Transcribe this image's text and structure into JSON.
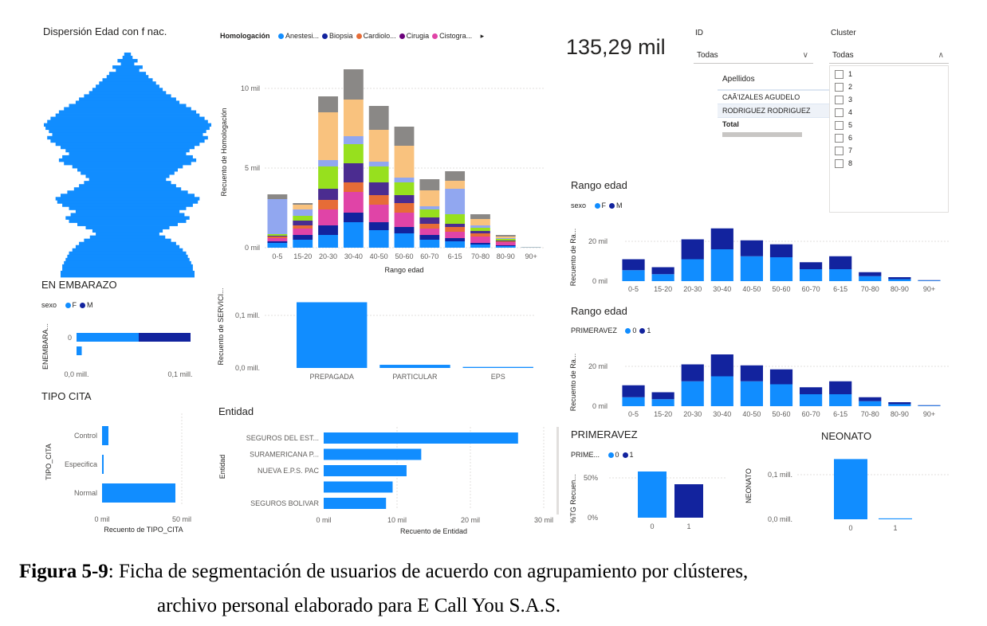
{
  "colors": {
    "blue": "#118DFF",
    "dark_blue": "#12239E",
    "orange": "#E66C37",
    "purple": "#6B007B",
    "pink": "#E044A7",
    "lime": "#97E01E",
    "peach": "#F9C27E",
    "lavender": "#91A7F0",
    "tan": "#D9C7B2",
    "teal": "#17B5C4",
    "crimson": "#C4163E",
    "indigo": "#4B2C90",
    "gray": "#8A8886"
  },
  "pyramid": {
    "title": "Dispersión Edad con f nac."
  },
  "homologacion": {
    "legend_title": "Homologación",
    "legend_items": [
      {
        "label": "Anestesi...",
        "color": "#118DFF"
      },
      {
        "label": "Biopsia",
        "color": "#12239E"
      },
      {
        "label": "Cardiolo...",
        "color": "#E66C37"
      },
      {
        "label": "Cirugia",
        "color": "#6B007B"
      },
      {
        "label": "Cistogra...",
        "color": "#E044A7"
      }
    ],
    "more_icon": "triangle-right-icon"
  },
  "kpi": {
    "value": "135,29 mil"
  },
  "slicer_id": {
    "label": "ID",
    "value": "Todas"
  },
  "slicer_cluster": {
    "label": "Cluster",
    "value": "Todas",
    "options": [
      "1",
      "2",
      "3",
      "4",
      "5",
      "6",
      "7",
      "8"
    ]
  },
  "apellidos_table": {
    "header": "Apellidos",
    "rows": [
      "CAÃ'IZALES AGUDELO",
      "RODRIGUEZ RODRIGUEZ"
    ],
    "total_label": "Total"
  },
  "embarazo": {
    "title": "EN EMBARAZO",
    "legend_title": "sexo",
    "legend_items": [
      {
        "label": "F",
        "color": "#118DFF"
      },
      {
        "label": "M",
        "color": "#12239E"
      }
    ],
    "ylabel": "ENEMBARA...",
    "category": "0",
    "xticks": [
      "0,0 mill.",
      "0,1 mill."
    ]
  },
  "tipo_cita": {
    "title": "TIPO CITA",
    "ylabel": "TIPO_CITA",
    "xlabel": "Recuento de TIPO_CITA",
    "xticks": [
      "0 mil",
      "50 mil"
    ]
  },
  "servicio": {
    "ylabel": "Recuento de SERVICI...",
    "yticks": [
      "0,1 mill.",
      "0,0 mill."
    ]
  },
  "entidad": {
    "title": "Entidad",
    "ylabel": "Entidad",
    "xlabel": "Recuento de Entidad",
    "xticks": [
      "0 mil",
      "10 mil",
      "20 mil",
      "30 mil"
    ]
  },
  "rango_sexo": {
    "title": "Rango edad",
    "legend_title": "sexo",
    "legend_items": [
      {
        "label": "F",
        "color": "#118DFF"
      },
      {
        "label": "M",
        "color": "#12239E"
      }
    ],
    "ylabel": "Recuento de Ra...",
    "yticks": [
      "20 mil",
      "0 mil"
    ]
  },
  "rango_primeravez": {
    "title": "Rango edad",
    "legend_title": "PRIMERAVEZ",
    "legend_items": [
      {
        "label": "0",
        "color": "#118DFF"
      },
      {
        "label": "1",
        "color": "#12239E"
      }
    ],
    "ylabel": "Recuento de Ra...",
    "yticks": [
      "20 mil",
      "0 mil"
    ]
  },
  "primeravez": {
    "title": "PRIMERAVEZ",
    "legend_title": "PRIME...",
    "legend_items": [
      {
        "label": "0",
        "color": "#118DFF"
      },
      {
        "label": "1",
        "color": "#12239E"
      }
    ],
    "ylabel": "%TG Recuen...",
    "yticks": [
      "50%",
      "0%"
    ]
  },
  "neonato": {
    "title": "NEONATO",
    "ylabel": "NEONATO",
    "yticks": [
      "0,1 mill.",
      "0,0 mill."
    ]
  },
  "caption": {
    "label": "Figura 5-9",
    "line1": ": Ficha de segmentación de usuarios de acuerdo con agrupamiento por clústeres,",
    "line2": "archivo personal elaborado para E Call You S.A.S."
  },
  "chart_data": [
    {
      "id": "homologacion",
      "type": "bar",
      "stacked": true,
      "xlabel": "Rango edad",
      "ylabel": "Recuento de Homologación",
      "ylim": [
        0,
        12
      ],
      "yticks": [
        "0 mil",
        "5 mil",
        "10 mil"
      ],
      "categories": [
        "0-5",
        "15-20",
        "20-30",
        "30-40",
        "40-50",
        "50-60",
        "60-70",
        "6-15",
        "70-80",
        "80-90",
        "90+"
      ],
      "series": [
        {
          "color": "#118DFF",
          "values": [
            0.3,
            0.5,
            0.8,
            1.6,
            1.1,
            0.9,
            0.5,
            0.4,
            0.2,
            0.1,
            0.02
          ]
        },
        {
          "color": "#12239E",
          "values": [
            0.1,
            0.3,
            0.6,
            0.6,
            0.5,
            0.4,
            0.3,
            0.2,
            0.1,
            0.05,
            0.0
          ]
        },
        {
          "color": "#E044A7",
          "values": [
            0.2,
            0.4,
            1.0,
            1.3,
            1.1,
            0.9,
            0.4,
            0.4,
            0.4,
            0.2,
            0.0
          ]
        },
        {
          "color": "#E66C37",
          "values": [
            0.1,
            0.2,
            0.6,
            0.6,
            0.6,
            0.6,
            0.3,
            0.3,
            0.2,
            0.05,
            0.0
          ]
        },
        {
          "color": "#4B2C90",
          "values": [
            0.05,
            0.3,
            0.7,
            1.2,
            0.8,
            0.5,
            0.4,
            0.2,
            0.15,
            0.05,
            0.0
          ]
        },
        {
          "color": "#97E01E",
          "values": [
            0.1,
            0.3,
            1.4,
            1.2,
            1.0,
            0.8,
            0.5,
            0.6,
            0.2,
            0.1,
            0.0
          ]
        },
        {
          "color": "#91A7F0",
          "values": [
            2.2,
            0.4,
            0.4,
            0.5,
            0.3,
            0.3,
            0.2,
            1.6,
            0.15,
            0.05,
            0.0
          ]
        },
        {
          "color": "#F9C27E",
          "values": [
            0.0,
            0.3,
            3.0,
            2.3,
            2.0,
            2.0,
            1.0,
            0.5,
            0.4,
            0.1,
            0.02
          ]
        },
        {
          "color": "#8A8886",
          "values": [
            0.3,
            0.1,
            1.0,
            1.9,
            1.5,
            1.2,
            0.7,
            0.6,
            0.3,
            0.1,
            0.0
          ]
        }
      ]
    },
    {
      "id": "pyramid",
      "type": "bar",
      "orientation": "horizontal",
      "color": "#118DFF",
      "values": [
        0.04,
        0.06,
        0.12,
        0.08,
        0.18,
        0.14,
        0.22,
        0.25,
        0.3,
        0.34,
        0.38,
        0.42,
        0.46,
        0.52,
        0.58,
        0.62,
        0.7,
        0.76,
        0.82,
        0.86,
        0.92,
        0.96,
        1.0,
        0.98,
        0.94,
        0.9,
        0.96,
        0.92,
        0.86,
        0.8,
        0.74,
        0.7,
        0.78,
        0.82,
        0.76,
        0.66,
        0.6,
        0.56,
        0.5,
        0.46,
        0.52,
        0.58,
        0.64,
        0.72,
        0.8,
        0.86,
        0.84,
        0.78,
        0.7,
        0.62,
        0.68,
        0.74,
        0.7,
        0.6,
        0.5,
        0.42,
        0.38,
        0.45,
        0.52,
        0.58,
        0.62,
        0.66,
        0.7,
        0.72,
        0.74,
        0.76,
        0.78,
        0.78,
        0.8,
        0.8
      ]
    },
    {
      "id": "embarazo",
      "type": "bar",
      "orientation": "horizontal",
      "stacked": true,
      "xlim": [
        0,
        0.15
      ],
      "rows": [
        {
          "F": 0.06,
          "M": 0.05
        },
        {
          "F": 0.005,
          "M": 0.0
        }
      ]
    },
    {
      "id": "tipo_cita",
      "type": "bar",
      "orientation": "horizontal",
      "xlim": [
        0,
        50
      ],
      "categories": [
        "Control",
        "Especifica",
        "Normal"
      ],
      "values": [
        4,
        1,
        46
      ]
    },
    {
      "id": "servicio",
      "type": "bar",
      "ylim": [
        0,
        0.13
      ],
      "categories": [
        "PREPAGADA",
        "PARTICULAR",
        "EPS"
      ],
      "values": [
        0.125,
        0.006,
        0.002
      ]
    },
    {
      "id": "entidad",
      "type": "bar",
      "orientation": "horizontal",
      "xlim": [
        0,
        30
      ],
      "categories": [
        "SEGUROS DEL EST...",
        "SURAMERICANA P...",
        "NUEVA E.P.S. PAC",
        "",
        "SEGUROS BOLIVAR"
      ],
      "values": [
        26.5,
        13.3,
        11.3,
        9.4,
        8.5
      ]
    },
    {
      "id": "rango_sexo",
      "type": "bar",
      "stacked": true,
      "ylim": [
        0,
        30
      ],
      "categories": [
        "0-5",
        "15-20",
        "20-30",
        "30-40",
        "40-50",
        "50-60",
        "60-70",
        "6-15",
        "70-80",
        "80-90",
        "90+"
      ],
      "series": [
        {
          "name": "F",
          "values": [
            5.5,
            3.5,
            11,
            16,
            12.5,
            12,
            6,
            6,
            2.5,
            1,
            0.3
          ]
        },
        {
          "name": "M",
          "values": [
            5.5,
            3.5,
            10,
            10.5,
            8,
            6.5,
            3.5,
            6.5,
            2,
            1,
            0.2
          ]
        }
      ]
    },
    {
      "id": "rango_primeravez",
      "type": "bar",
      "stacked": true,
      "ylim": [
        0,
        30
      ],
      "categories": [
        "0-5",
        "15-20",
        "20-30",
        "30-40",
        "40-50",
        "50-60",
        "60-70",
        "6-15",
        "70-80",
        "80-90",
        "90+"
      ],
      "series": [
        {
          "name": "0",
          "values": [
            4.5,
            3.5,
            12.5,
            15,
            12.5,
            11,
            6,
            6,
            2.5,
            1,
            0.3
          ]
        },
        {
          "name": "1",
          "values": [
            6,
            3.5,
            8.5,
            11,
            8,
            7.5,
            3.5,
            6.5,
            2,
            1,
            0.2
          ]
        }
      ]
    },
    {
      "id": "primeravez",
      "type": "bar",
      "ylim": [
        0,
        70
      ],
      "categories": [
        "0",
        "1"
      ],
      "values": [
        58,
        42
      ]
    },
    {
      "id": "neonato",
      "type": "bar",
      "ylim": [
        0,
        0.14
      ],
      "categories": [
        "0",
        "1"
      ],
      "values": [
        0.135,
        0.002
      ]
    }
  ]
}
